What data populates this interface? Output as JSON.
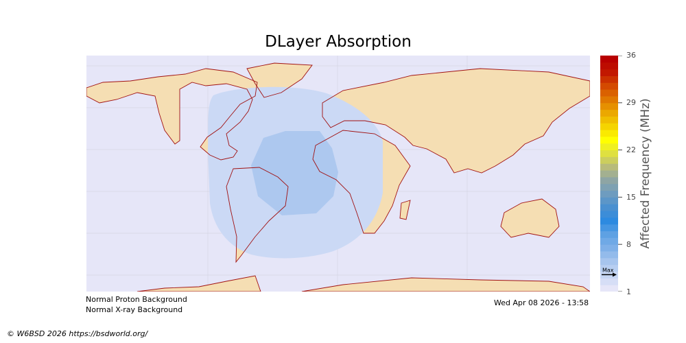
{
  "title": "DLayer Absorption",
  "colorbar": {
    "label": "Affected Frequency (MHz)",
    "ticks": [
      "36",
      "29",
      "22",
      "15",
      "8",
      "1"
    ],
    "range": [
      1,
      36
    ],
    "max_marker_label": "Max",
    "max_marker_value": 3.5,
    "colors": [
      "#e6e6f8",
      "#c6d6f3",
      "#a7c5ee",
      "#7fb0e8",
      "#5ea1e3",
      "#2d8ae0",
      "#4a90d0",
      "#6e9cbf",
      "#8ea5a4",
      "#b8bb7b",
      "#dfe040",
      "#ffff00",
      "#f5d400",
      "#eba800",
      "#e07800",
      "#d44a00",
      "#c21800",
      "#b80000"
    ]
  },
  "map": {
    "background": "#e6e6f8",
    "land": "#f5deb3",
    "coast": "#a01010",
    "absorption_outer": "#cbd9f5",
    "absorption_inner": "#adc8ef"
  },
  "status": {
    "proton": "Normal Proton Background",
    "xray": "Normal X-ray Background",
    "timestamp": "Wed Apr 08 2026 - 13:58"
  },
  "copyright": "© W6BSD 2026 https://bsdworld.org/"
}
